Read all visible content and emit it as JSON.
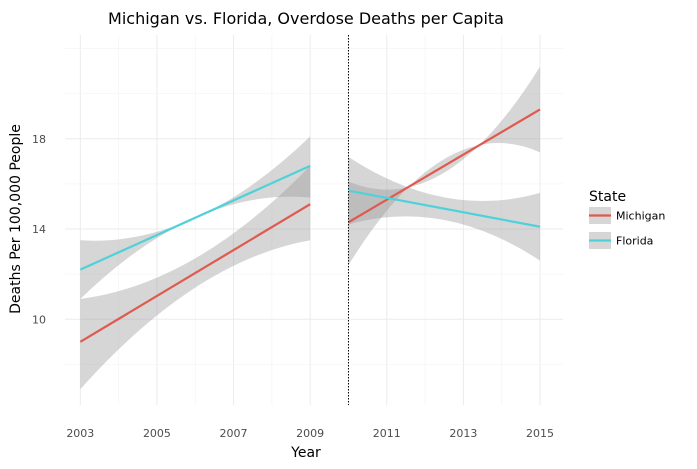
{
  "chart_data": {
    "type": "line",
    "title": "Michigan vs. Florida, Overdose Deaths per Capita",
    "xlabel": "Year",
    "ylabel": "Deaths Per 100,000 People",
    "xlim": [
      2002.6,
      2015.6
    ],
    "ylim": [
      6.2,
      22.6
    ],
    "x_ticks": [
      2003,
      2005,
      2007,
      2009,
      2011,
      2013,
      2015
    ],
    "y_ticks": [
      10,
      14,
      18
    ],
    "grid": true,
    "reference_line": {
      "x": 2010,
      "style": "dotted"
    },
    "legend": {
      "title": "State",
      "placement": "right"
    },
    "series": [
      {
        "name": "Michigan",
        "color": "#e0594e",
        "segments": [
          {
            "x": [
              2003,
              2009
            ],
            "y": [
              9.0,
              15.1
            ],
            "ci_lower": [
              6.9,
              13.5
            ],
            "ci_upper": [
              10.9,
              16.8
            ],
            "ci_mid": 12.7
          },
          {
            "x": [
              2010,
              2015
            ],
            "y": [
              14.3,
              19.3
            ],
            "ci_lower": [
              12.4,
              17.4
            ],
            "ci_upper": [
              16.1,
              21.2
            ],
            "ci_mid": 16.5
          }
        ]
      },
      {
        "name": "Florida",
        "color": "#4fd1d9",
        "segments": [
          {
            "x": [
              2003,
              2009
            ],
            "y": [
              12.2,
              16.8
            ],
            "ci_lower": [
              10.9,
              15.4
            ],
            "ci_upper": [
              13.5,
              18.1
            ],
            "ci_mid": 14.5
          },
          {
            "x": [
              2010,
              2015
            ],
            "y": [
              15.7,
              14.1
            ],
            "ci_lower": [
              14.2,
              12.6
            ],
            "ci_upper": [
              17.2,
              15.6
            ],
            "ci_mid": 15.4
          }
        ]
      }
    ]
  }
}
